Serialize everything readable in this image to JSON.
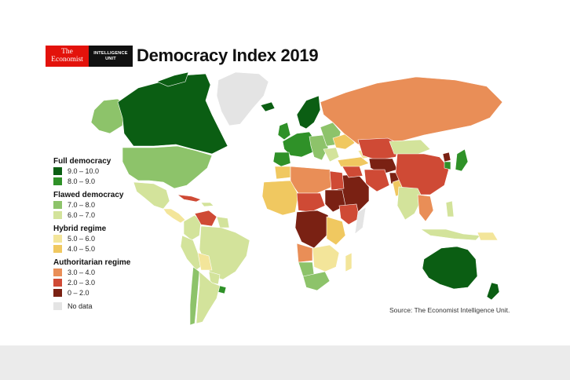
{
  "brand": {
    "line1": "The",
    "line2": "Economist",
    "unit1": "INTELLIGENCE",
    "unit2": "UNIT"
  },
  "title": "Democracy Index 2019",
  "legend": {
    "categories": [
      {
        "label": "Full democracy",
        "items": [
          {
            "range": "9.0 – 10.0",
            "color": "#0b5e13"
          },
          {
            "range": "8.0 – 9.0",
            "color": "#2f9128"
          }
        ]
      },
      {
        "label": "Flawed democracy",
        "items": [
          {
            "range": "7.0 – 8.0",
            "color": "#8dc36a"
          },
          {
            "range": "6.0 – 7.0",
            "color": "#d3e39b"
          }
        ]
      },
      {
        "label": "Hybrid regime",
        "items": [
          {
            "range": "5.0 – 6.0",
            "color": "#f3e59a"
          },
          {
            "range": "4.0 – 5.0",
            "color": "#f0c860"
          }
        ]
      },
      {
        "label": "Authoritarian regime",
        "items": [
          {
            "range": "3.0 – 4.0",
            "color": "#e98e57"
          },
          {
            "range": "2.0 – 3.0",
            "color": "#cf4a35"
          },
          {
            "range": "0 – 2.0",
            "color": "#7a2113"
          }
        ]
      }
    ],
    "no_data": {
      "label": "No data",
      "color": "#e4e4e4"
    }
  },
  "source": "Source: The Economist Intelligence Unit."
}
